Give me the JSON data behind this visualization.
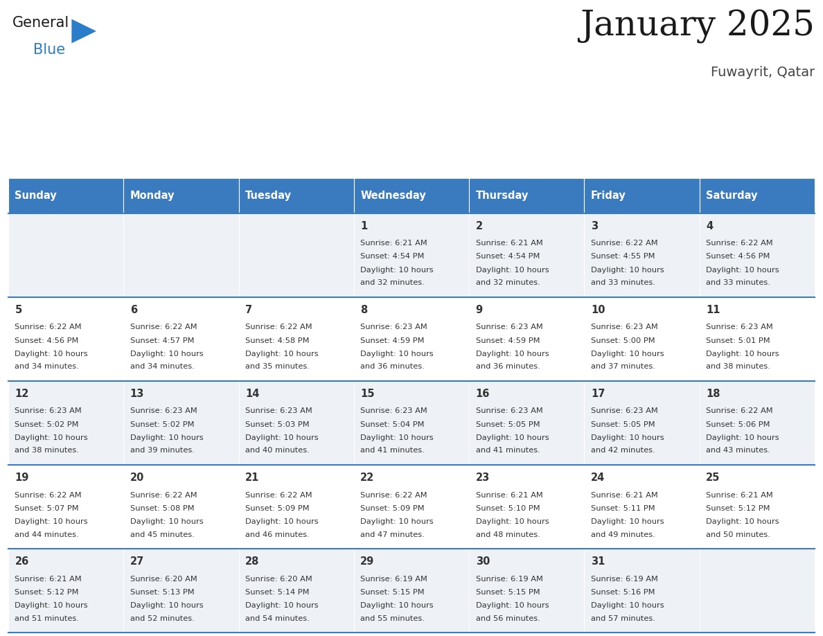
{
  "title": "January 2025",
  "subtitle": "Fuwayrit, Qatar",
  "header_bg": "#3a7abf",
  "header_text": "#ffffff",
  "row_bg_odd": "#eef2f7",
  "row_bg_even": "#ffffff",
  "cell_border": "#3a7abf",
  "text_color": "#333333",
  "day_names": [
    "Sunday",
    "Monday",
    "Tuesday",
    "Wednesday",
    "Thursday",
    "Friday",
    "Saturday"
  ],
  "days": [
    {
      "day": 1,
      "col": 3,
      "row": 0,
      "sunrise": "6:21 AM",
      "sunset": "4:54 PM",
      "daylight_h": "10 hours",
      "daylight_m": "and 32 minutes."
    },
    {
      "day": 2,
      "col": 4,
      "row": 0,
      "sunrise": "6:21 AM",
      "sunset": "4:54 PM",
      "daylight_h": "10 hours",
      "daylight_m": "and 32 minutes."
    },
    {
      "day": 3,
      "col": 5,
      "row": 0,
      "sunrise": "6:22 AM",
      "sunset": "4:55 PM",
      "daylight_h": "10 hours",
      "daylight_m": "and 33 minutes."
    },
    {
      "day": 4,
      "col": 6,
      "row": 0,
      "sunrise": "6:22 AM",
      "sunset": "4:56 PM",
      "daylight_h": "10 hours",
      "daylight_m": "and 33 minutes."
    },
    {
      "day": 5,
      "col": 0,
      "row": 1,
      "sunrise": "6:22 AM",
      "sunset": "4:56 PM",
      "daylight_h": "10 hours",
      "daylight_m": "and 34 minutes."
    },
    {
      "day": 6,
      "col": 1,
      "row": 1,
      "sunrise": "6:22 AM",
      "sunset": "4:57 PM",
      "daylight_h": "10 hours",
      "daylight_m": "and 34 minutes."
    },
    {
      "day": 7,
      "col": 2,
      "row": 1,
      "sunrise": "6:22 AM",
      "sunset": "4:58 PM",
      "daylight_h": "10 hours",
      "daylight_m": "and 35 minutes."
    },
    {
      "day": 8,
      "col": 3,
      "row": 1,
      "sunrise": "6:23 AM",
      "sunset": "4:59 PM",
      "daylight_h": "10 hours",
      "daylight_m": "and 36 minutes."
    },
    {
      "day": 9,
      "col": 4,
      "row": 1,
      "sunrise": "6:23 AM",
      "sunset": "4:59 PM",
      "daylight_h": "10 hours",
      "daylight_m": "and 36 minutes."
    },
    {
      "day": 10,
      "col": 5,
      "row": 1,
      "sunrise": "6:23 AM",
      "sunset": "5:00 PM",
      "daylight_h": "10 hours",
      "daylight_m": "and 37 minutes."
    },
    {
      "day": 11,
      "col": 6,
      "row": 1,
      "sunrise": "6:23 AM",
      "sunset": "5:01 PM",
      "daylight_h": "10 hours",
      "daylight_m": "and 38 minutes."
    },
    {
      "day": 12,
      "col": 0,
      "row": 2,
      "sunrise": "6:23 AM",
      "sunset": "5:02 PM",
      "daylight_h": "10 hours",
      "daylight_m": "and 38 minutes."
    },
    {
      "day": 13,
      "col": 1,
      "row": 2,
      "sunrise": "6:23 AM",
      "sunset": "5:02 PM",
      "daylight_h": "10 hours",
      "daylight_m": "and 39 minutes."
    },
    {
      "day": 14,
      "col": 2,
      "row": 2,
      "sunrise": "6:23 AM",
      "sunset": "5:03 PM",
      "daylight_h": "10 hours",
      "daylight_m": "and 40 minutes."
    },
    {
      "day": 15,
      "col": 3,
      "row": 2,
      "sunrise": "6:23 AM",
      "sunset": "5:04 PM",
      "daylight_h": "10 hours",
      "daylight_m": "and 41 minutes."
    },
    {
      "day": 16,
      "col": 4,
      "row": 2,
      "sunrise": "6:23 AM",
      "sunset": "5:05 PM",
      "daylight_h": "10 hours",
      "daylight_m": "and 41 minutes."
    },
    {
      "day": 17,
      "col": 5,
      "row": 2,
      "sunrise": "6:23 AM",
      "sunset": "5:05 PM",
      "daylight_h": "10 hours",
      "daylight_m": "and 42 minutes."
    },
    {
      "day": 18,
      "col": 6,
      "row": 2,
      "sunrise": "6:22 AM",
      "sunset": "5:06 PM",
      "daylight_h": "10 hours",
      "daylight_m": "and 43 minutes."
    },
    {
      "day": 19,
      "col": 0,
      "row": 3,
      "sunrise": "6:22 AM",
      "sunset": "5:07 PM",
      "daylight_h": "10 hours",
      "daylight_m": "and 44 minutes."
    },
    {
      "day": 20,
      "col": 1,
      "row": 3,
      "sunrise": "6:22 AM",
      "sunset": "5:08 PM",
      "daylight_h": "10 hours",
      "daylight_m": "and 45 minutes."
    },
    {
      "day": 21,
      "col": 2,
      "row": 3,
      "sunrise": "6:22 AM",
      "sunset": "5:09 PM",
      "daylight_h": "10 hours",
      "daylight_m": "and 46 minutes."
    },
    {
      "day": 22,
      "col": 3,
      "row": 3,
      "sunrise": "6:22 AM",
      "sunset": "5:09 PM",
      "daylight_h": "10 hours",
      "daylight_m": "and 47 minutes."
    },
    {
      "day": 23,
      "col": 4,
      "row": 3,
      "sunrise": "6:21 AM",
      "sunset": "5:10 PM",
      "daylight_h": "10 hours",
      "daylight_m": "and 48 minutes."
    },
    {
      "day": 24,
      "col": 5,
      "row": 3,
      "sunrise": "6:21 AM",
      "sunset": "5:11 PM",
      "daylight_h": "10 hours",
      "daylight_m": "and 49 minutes."
    },
    {
      "day": 25,
      "col": 6,
      "row": 3,
      "sunrise": "6:21 AM",
      "sunset": "5:12 PM",
      "daylight_h": "10 hours",
      "daylight_m": "and 50 minutes."
    },
    {
      "day": 26,
      "col": 0,
      "row": 4,
      "sunrise": "6:21 AM",
      "sunset": "5:12 PM",
      "daylight_h": "10 hours",
      "daylight_m": "and 51 minutes."
    },
    {
      "day": 27,
      "col": 1,
      "row": 4,
      "sunrise": "6:20 AM",
      "sunset": "5:13 PM",
      "daylight_h": "10 hours",
      "daylight_m": "and 52 minutes."
    },
    {
      "day": 28,
      "col": 2,
      "row": 4,
      "sunrise": "6:20 AM",
      "sunset": "5:14 PM",
      "daylight_h": "10 hours",
      "daylight_m": "and 54 minutes."
    },
    {
      "day": 29,
      "col": 3,
      "row": 4,
      "sunrise": "6:19 AM",
      "sunset": "5:15 PM",
      "daylight_h": "10 hours",
      "daylight_m": "and 55 minutes."
    },
    {
      "day": 30,
      "col": 4,
      "row": 4,
      "sunrise": "6:19 AM",
      "sunset": "5:15 PM",
      "daylight_h": "10 hours",
      "daylight_m": "and 56 minutes."
    },
    {
      "day": 31,
      "col": 5,
      "row": 4,
      "sunrise": "6:19 AM",
      "sunset": "5:16 PM",
      "daylight_h": "10 hours",
      "daylight_m": "and 57 minutes."
    }
  ],
  "figsize": [
    11.88,
    9.18
  ],
  "dpi": 100
}
